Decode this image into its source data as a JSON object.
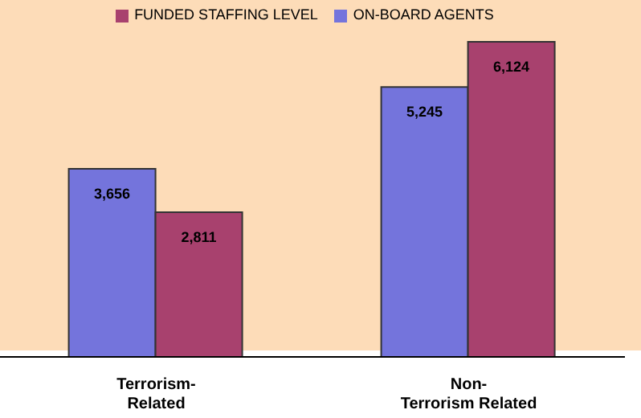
{
  "chart_data": {
    "type": "bar",
    "categories": [
      "Terrorism-Related",
      "Non-Terrorism Related"
    ],
    "series": [
      {
        "name": "ON-BOARD AGENTS",
        "color": "#7474dc",
        "values": [
          3656,
          5245
        ],
        "value_labels": [
          "3,656",
          "5,245"
        ]
      },
      {
        "name": "FUNDED STAFFING LEVEL",
        "color": "#a8416e",
        "values": [
          2811,
          6124
        ],
        "value_labels": [
          "2,811",
          "6,124"
        ]
      }
    ],
    "legend": "top",
    "grid": false
  }
}
